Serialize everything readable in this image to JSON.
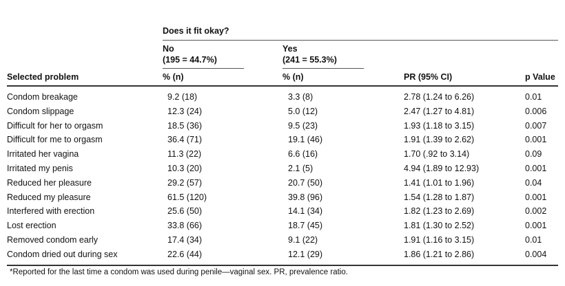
{
  "table": {
    "group_header": "Does it fit okay?",
    "no_label": "No",
    "no_n": "(195 = 44.7%)",
    "yes_label": "Yes",
    "yes_n": "(241 = 55.3%)",
    "columns": [
      "Selected problem",
      "% (n)",
      "% (n)",
      "PR (95% CI)",
      "p Value"
    ],
    "rows": [
      [
        "Condom breakage",
        "9.2 (18)",
        "3.3 (8)",
        "2.78 (1.24 to 6.26)",
        "0.01"
      ],
      [
        "Condom slippage",
        "12.3 (24)",
        "5.0 (12)",
        "2.47 (1.27 to 4.81)",
        "0.006"
      ],
      [
        "Difficult for her to orgasm",
        "18.5 (36)",
        "9.5 (23)",
        "1.93 (1.18 to 3.15)",
        "0.007"
      ],
      [
        "Difficult for me to orgasm",
        "36.4 (71)",
        "19.1 (46)",
        "1.91 (1.39 to 2.62)",
        "0.001"
      ],
      [
        "Irritated her vagina",
        "11.3 (22)",
        "6.6 (16)",
        "1.70 (.92 to 3.14)",
        "0.09"
      ],
      [
        "Irritated my penis",
        "10.3 (20)",
        "2.1 (5)",
        "4.94 (1.89 to 12.93)",
        "0.001"
      ],
      [
        "Reduced her pleasure",
        "29.2 (57)",
        "20.7 (50)",
        "1.41 (1.01 to 1.96)",
        "0.04"
      ],
      [
        "Reduced my pleasure",
        "61.5 (120)",
        "39.8 (96)",
        "1.54 (1.28 to 1.87)",
        "0.001"
      ],
      [
        "Interfered with erection",
        "25.6 (50)",
        "14.1 (34)",
        "1.82 (1.23 to 2.69)",
        "0.002"
      ],
      [
        "Lost erection",
        "33.8 (66)",
        "18.7 (45)",
        "1.81 (1.30 to 2.52)",
        "0.001"
      ],
      [
        "Removed condom early",
        "17.4 (34)",
        "9.1 (22)",
        "1.91 (1.16 to 3.15)",
        "0.01"
      ],
      [
        "Condom dried out during sex",
        "22.6 (44)",
        "12.1 (29)",
        "1.86 (1.21 to 2.86)",
        "0.004"
      ]
    ],
    "footnote": "*Reported for the last time a condom was used during penile—vaginal sex. PR, prevalence ratio."
  }
}
